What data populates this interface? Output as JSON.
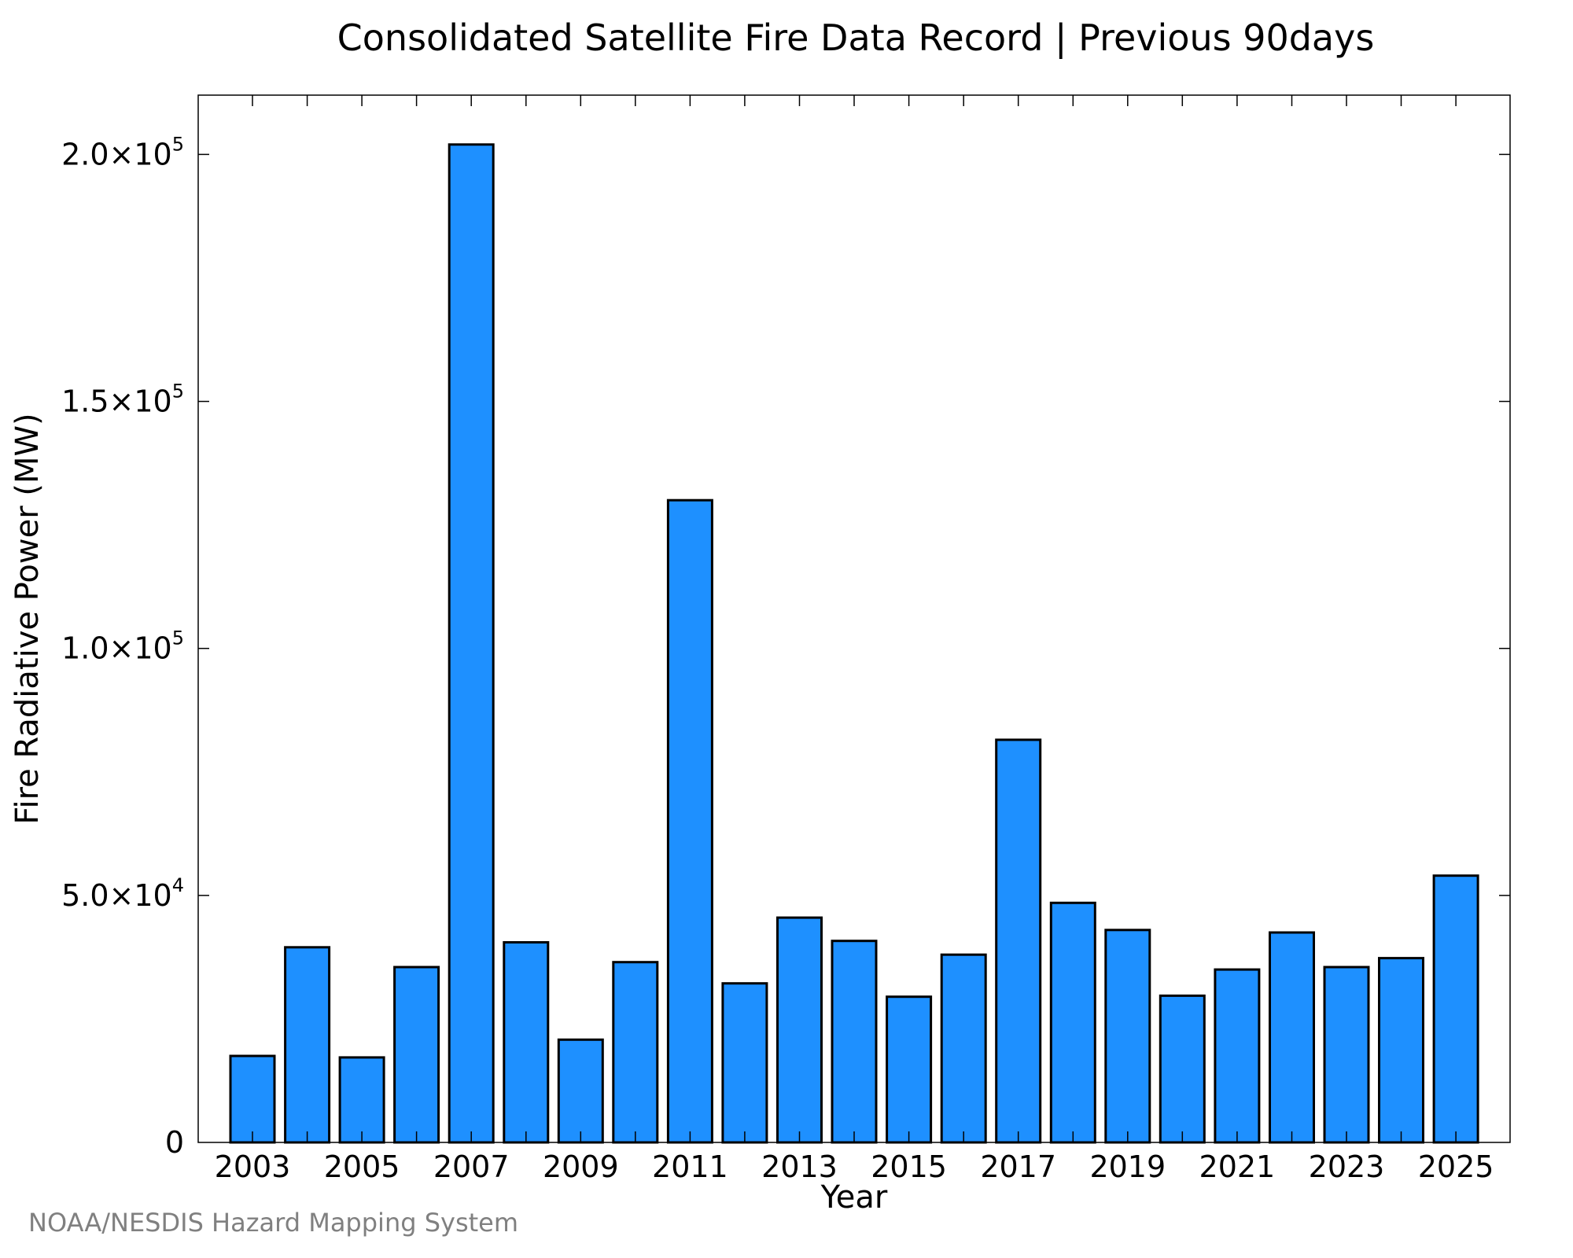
{
  "chart_data": {
    "type": "bar",
    "title": "Consolidated Satellite Fire Data Record | Previous 90days",
    "xlabel": "Year",
    "ylabel": "Fire Radiative Power (MW)",
    "categories": [
      "2003",
      "2004",
      "2005",
      "2006",
      "2007",
      "2008",
      "2009",
      "2010",
      "2011",
      "2012",
      "2013",
      "2014",
      "2015",
      "2016",
      "2017",
      "2018",
      "2019",
      "2020",
      "2021",
      "2022",
      "2023",
      "2024",
      "2025"
    ],
    "values": [
      17500,
      39500,
      17200,
      35500,
      202000,
      40500,
      20800,
      36500,
      130000,
      32200,
      45500,
      40800,
      29500,
      38000,
      81500,
      48500,
      43000,
      29700,
      35000,
      42500,
      35500,
      37300,
      54000
    ],
    "x_tick_labels": [
      "2003",
      "2005",
      "2007",
      "2009",
      "2011",
      "2013",
      "2015",
      "2017",
      "2019",
      "2021",
      "2023",
      "2025"
    ],
    "y_ticks": [
      {
        "value": 0,
        "mantissa": "0",
        "exponent": ""
      },
      {
        "value": 50000,
        "mantissa": "5.0×10",
        "exponent": "4"
      },
      {
        "value": 100000,
        "mantissa": "1.0×10",
        "exponent": "5"
      },
      {
        "value": 150000,
        "mantissa": "1.5×10",
        "exponent": "5"
      },
      {
        "value": 200000,
        "mantissa": "2.0×10",
        "exponent": "5"
      }
    ],
    "ylim": [
      0,
      212000
    ],
    "grid": false,
    "bar_color": "#1e90ff",
    "bar_edge_color": "#000000"
  },
  "credit": "NOAA/NESDIS Hazard Mapping System"
}
